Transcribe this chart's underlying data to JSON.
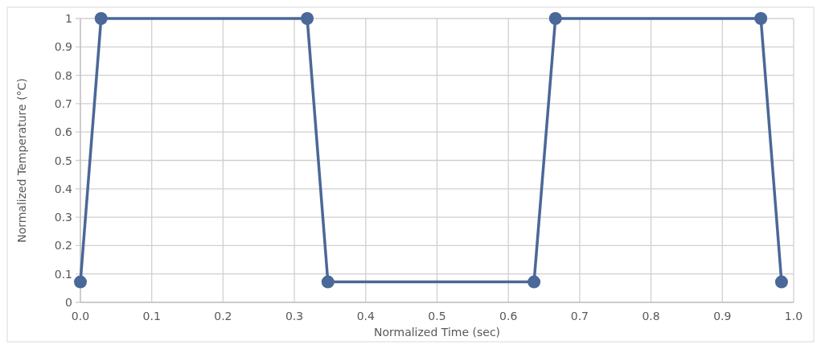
{
  "chart_data": {
    "type": "line",
    "xlabel": "Normalized Time (sec)",
    "ylabel": "Normalized Temperature (°C)",
    "x": [
      0,
      0.029,
      0.318,
      0.347,
      0.636,
      0.666,
      0.954,
      0.983
    ],
    "series": [
      {
        "color": "#4a6898",
        "values": [
          0.072,
          1,
          1,
          0.072,
          0.072,
          1,
          1,
          0.072
        ]
      }
    ],
    "xlim": [
      0,
      1
    ],
    "ylim": [
      0,
      1
    ],
    "xticks": [
      {
        "value": 0,
        "label": "0.0"
      },
      0.1,
      0.2,
      0.3,
      0.4,
      0.5,
      0.6,
      0.7,
      0.8,
      0.9,
      {
        "value": 1,
        "label": "1.0"
      }
    ],
    "yticks": [
      0,
      0.1,
      0.2,
      0.3,
      0.4,
      0.5,
      0.6,
      0.7,
      0.8,
      0.9,
      1
    ],
    "grid": true,
    "marker": "circle",
    "line_style": "solid"
  }
}
